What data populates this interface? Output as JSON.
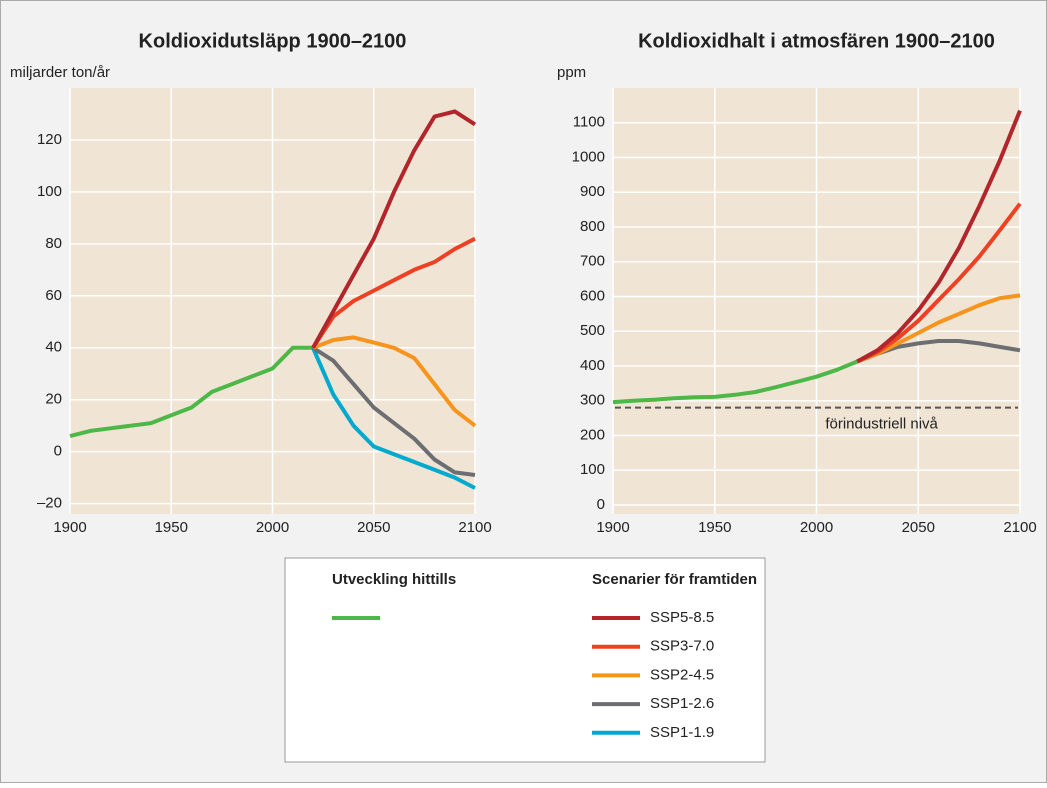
{
  "chart_data": [
    {
      "type": "line",
      "title": "Koldioxidutsläpp 1900–2100",
      "y_label": "miljarder ton/år",
      "x": [
        1900,
        1910,
        1920,
        1930,
        1940,
        1950,
        1960,
        1970,
        1980,
        1990,
        2000,
        2010,
        2020,
        2030,
        2040,
        2050,
        2060,
        2070,
        2080,
        2090,
        2100
      ],
      "xlim": [
        1900,
        2100
      ],
      "xticks": [
        1900,
        1950,
        2000,
        2050,
        2100
      ],
      "ylim": [
        -24,
        140
      ],
      "yticks": [
        {
          "value": -20,
          "label": "–20"
        },
        0,
        20,
        40,
        60,
        80,
        100,
        120
      ],
      "grid": true,
      "series": [
        {
          "name": "Utveckling hittills",
          "color": "#4db848",
          "values": [
            6,
            8,
            9,
            10,
            11,
            14,
            17,
            23,
            26,
            29,
            32,
            40,
            40,
            null,
            null,
            null,
            null,
            null,
            null,
            null,
            null
          ]
        },
        {
          "name": "SSP1-1.9",
          "color": "#00a9ce",
          "values": [
            null,
            null,
            null,
            null,
            null,
            null,
            null,
            null,
            null,
            null,
            null,
            null,
            40,
            22,
            10,
            2,
            -1,
            -4,
            -7,
            -10,
            -14
          ]
        },
        {
          "name": "SSP1-2.6",
          "color": "#6d6e71",
          "values": [
            null,
            null,
            null,
            null,
            null,
            null,
            null,
            null,
            null,
            null,
            null,
            null,
            40,
            35,
            26,
            17,
            11,
            5,
            -3,
            -8,
            -9
          ]
        },
        {
          "name": "SSP2-4.5",
          "color": "#f7941d",
          "values": [
            null,
            null,
            null,
            null,
            null,
            null,
            null,
            null,
            null,
            null,
            null,
            null,
            40,
            43,
            44,
            42,
            40,
            36,
            26,
            16,
            10
          ]
        },
        {
          "name": "SSP3-7.0",
          "color": "#ee4123",
          "values": [
            null,
            null,
            null,
            null,
            null,
            null,
            null,
            null,
            null,
            null,
            null,
            null,
            40,
            52,
            58,
            62,
            66,
            70,
            73,
            78,
            82
          ]
        },
        {
          "name": "SSP5-8.5",
          "color": "#b2262b",
          "values": [
            null,
            null,
            null,
            null,
            null,
            null,
            null,
            null,
            null,
            null,
            null,
            null,
            40,
            54,
            68,
            82,
            100,
            116,
            129,
            131,
            126
          ]
        }
      ]
    },
    {
      "type": "line",
      "title": "Koldioxidhalt i atmosfären 1900–2100",
      "y_label": "ppm",
      "x": [
        1900,
        1910,
        1920,
        1930,
        1940,
        1950,
        1960,
        1970,
        1980,
        1990,
        2000,
        2010,
        2020,
        2030,
        2040,
        2050,
        2060,
        2070,
        2080,
        2090,
        2100
      ],
      "xlim": [
        1900,
        2100
      ],
      "xticks": [
        1900,
        1950,
        2000,
        2050,
        2100
      ],
      "ylim": [
        -26,
        1200
      ],
      "yticks": [
        0,
        100,
        200,
        300,
        400,
        500,
        600,
        700,
        800,
        900,
        1000,
        1100
      ],
      "grid": true,
      "hline": {
        "value": 280,
        "label": "förindustriell nivå",
        "color": "#555555"
      },
      "series": [
        {
          "name": "Utveckling hittills",
          "color": "#4db848",
          "values": [
            296,
            300,
            303,
            307,
            310,
            311,
            317,
            325,
            339,
            354,
            369,
            389,
            413,
            null,
            null,
            null,
            null,
            null,
            null,
            null,
            null
          ]
        },
        {
          "name": "SSP1-2.6",
          "color": "#6d6e71",
          "values": [
            null,
            null,
            null,
            null,
            null,
            null,
            null,
            null,
            null,
            null,
            null,
            null,
            413,
            435,
            455,
            465,
            472,
            472,
            465,
            455,
            445
          ]
        },
        {
          "name": "SSP2-4.5",
          "color": "#f7941d",
          "values": [
            null,
            null,
            null,
            null,
            null,
            null,
            null,
            null,
            null,
            null,
            null,
            null,
            413,
            435,
            465,
            495,
            525,
            550,
            575,
            595,
            603
          ]
        },
        {
          "name": "SSP3-7.0",
          "color": "#ee4123",
          "values": [
            null,
            null,
            null,
            null,
            null,
            null,
            null,
            null,
            null,
            null,
            null,
            null,
            413,
            440,
            480,
            530,
            590,
            650,
            715,
            790,
            867
          ]
        },
        {
          "name": "SSP5-8.5",
          "color": "#b2262b",
          "values": [
            null,
            null,
            null,
            null,
            null,
            null,
            null,
            null,
            null,
            null,
            null,
            null,
            413,
            445,
            495,
            560,
            640,
            740,
            860,
            990,
            1135
          ]
        }
      ]
    }
  ],
  "legend": {
    "scenario_title": "Scenarier för framtiden"
  }
}
